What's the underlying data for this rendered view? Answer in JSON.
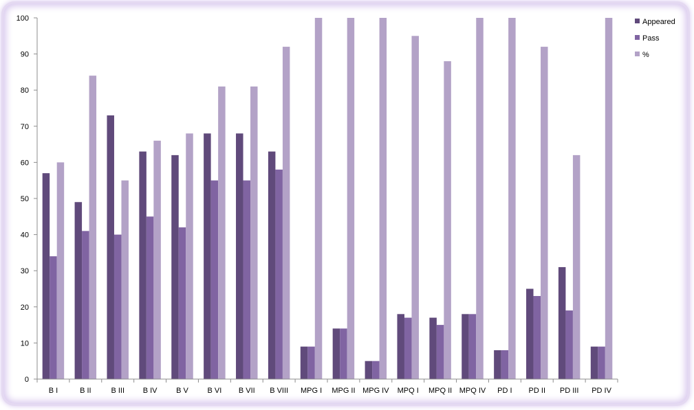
{
  "chart_data": {
    "type": "bar",
    "categories": [
      "B I",
      "B II",
      "B III",
      "B IV",
      "B V",
      "B VI",
      "B VII",
      "B VIII",
      "MPG I",
      "MPG II",
      "MPG IV",
      "MPQ I",
      "MPQ II",
      "MPQ IV",
      "PD I",
      "PD II",
      "PD III",
      "PD IV"
    ],
    "series": [
      {
        "name": "Appeared",
        "color": "#604a7b",
        "values": [
          57,
          49,
          73,
          63,
          62,
          68,
          68,
          63,
          9,
          14,
          5,
          18,
          17,
          18,
          8,
          25,
          31,
          9
        ]
      },
      {
        "name": "Pass",
        "color": "#8064a2",
        "values": [
          34,
          41,
          40,
          45,
          42,
          55,
          55,
          58,
          9,
          14,
          5,
          17,
          15,
          18,
          8,
          23,
          19,
          9
        ]
      },
      {
        "name": "%",
        "color": "#b3a2c7",
        "values": [
          60,
          84,
          55,
          66,
          68,
          81,
          81,
          92,
          100,
          100,
          100,
          95,
          88,
          100,
          100,
          92,
          62,
          100
        ]
      }
    ],
    "ylim": [
      0,
      100
    ],
    "yticks": [
      0,
      10,
      20,
      30,
      40,
      50,
      60,
      70,
      80,
      90,
      100
    ],
    "xlabel": "",
    "ylabel": "",
    "title": "",
    "legend": "right",
    "grid": false
  }
}
